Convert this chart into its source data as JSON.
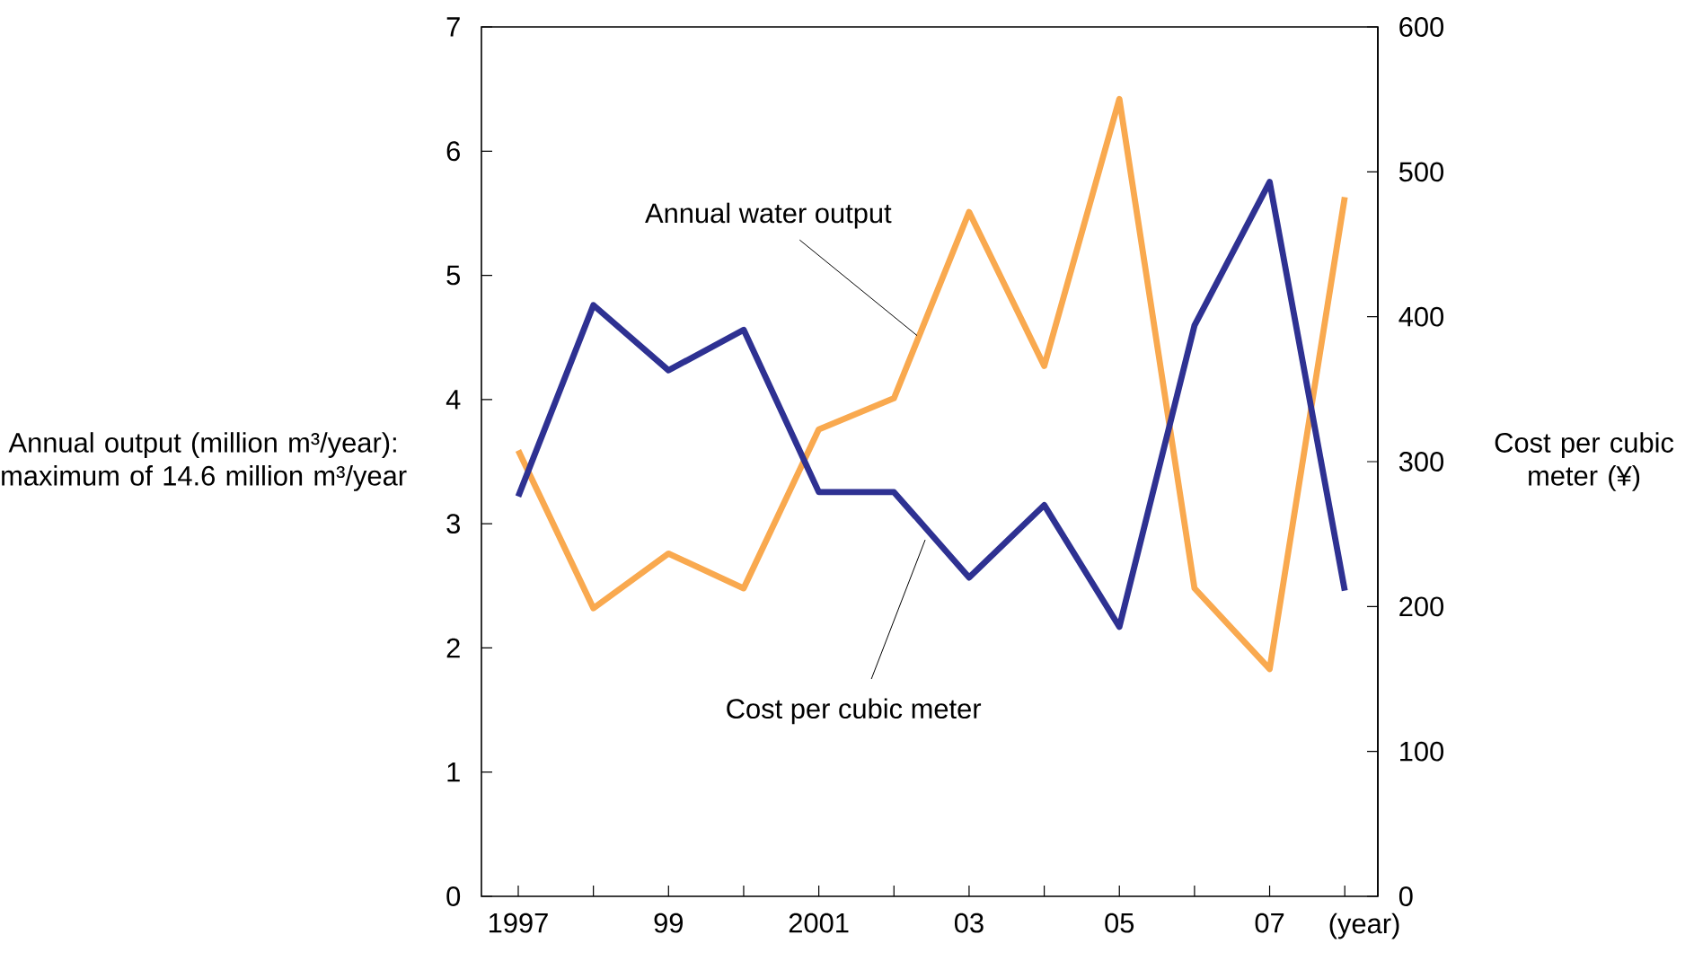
{
  "chart_data": {
    "type": "line",
    "categories": [
      "1997",
      null,
      "99",
      null,
      "2001",
      null,
      "03",
      null,
      "05",
      null,
      "07",
      null
    ],
    "xlabel": "(year)",
    "ylabel": "Annual output (million m³/year): maximum of 14.6 million m³/year",
    "y2label": "Cost per cubic meter (¥)",
    "ylim": [
      0,
      7
    ],
    "yticks": [
      0,
      1,
      2,
      3,
      4,
      5,
      6,
      7
    ],
    "y2lim": [
      0,
      600
    ],
    "y2ticks": [
      0,
      100,
      200,
      300,
      400,
      500,
      600
    ],
    "legend": false,
    "series": [
      {
        "name": "Annual water output",
        "color": "#f9a94f",
        "values": [
          3.59,
          2.32,
          2.76,
          2.48,
          3.76,
          4.01,
          5.51,
          4.27,
          6.42,
          2.48,
          1.83,
          5.63
        ]
      },
      {
        "name": "Cost per cubic meter",
        "color": "#2e3192",
        "axis": "y2",
        "values": [
          276,
          408,
          363,
          391,
          279,
          279,
          220,
          270,
          186,
          394,
          493,
          211
        ]
      }
    ]
  }
}
